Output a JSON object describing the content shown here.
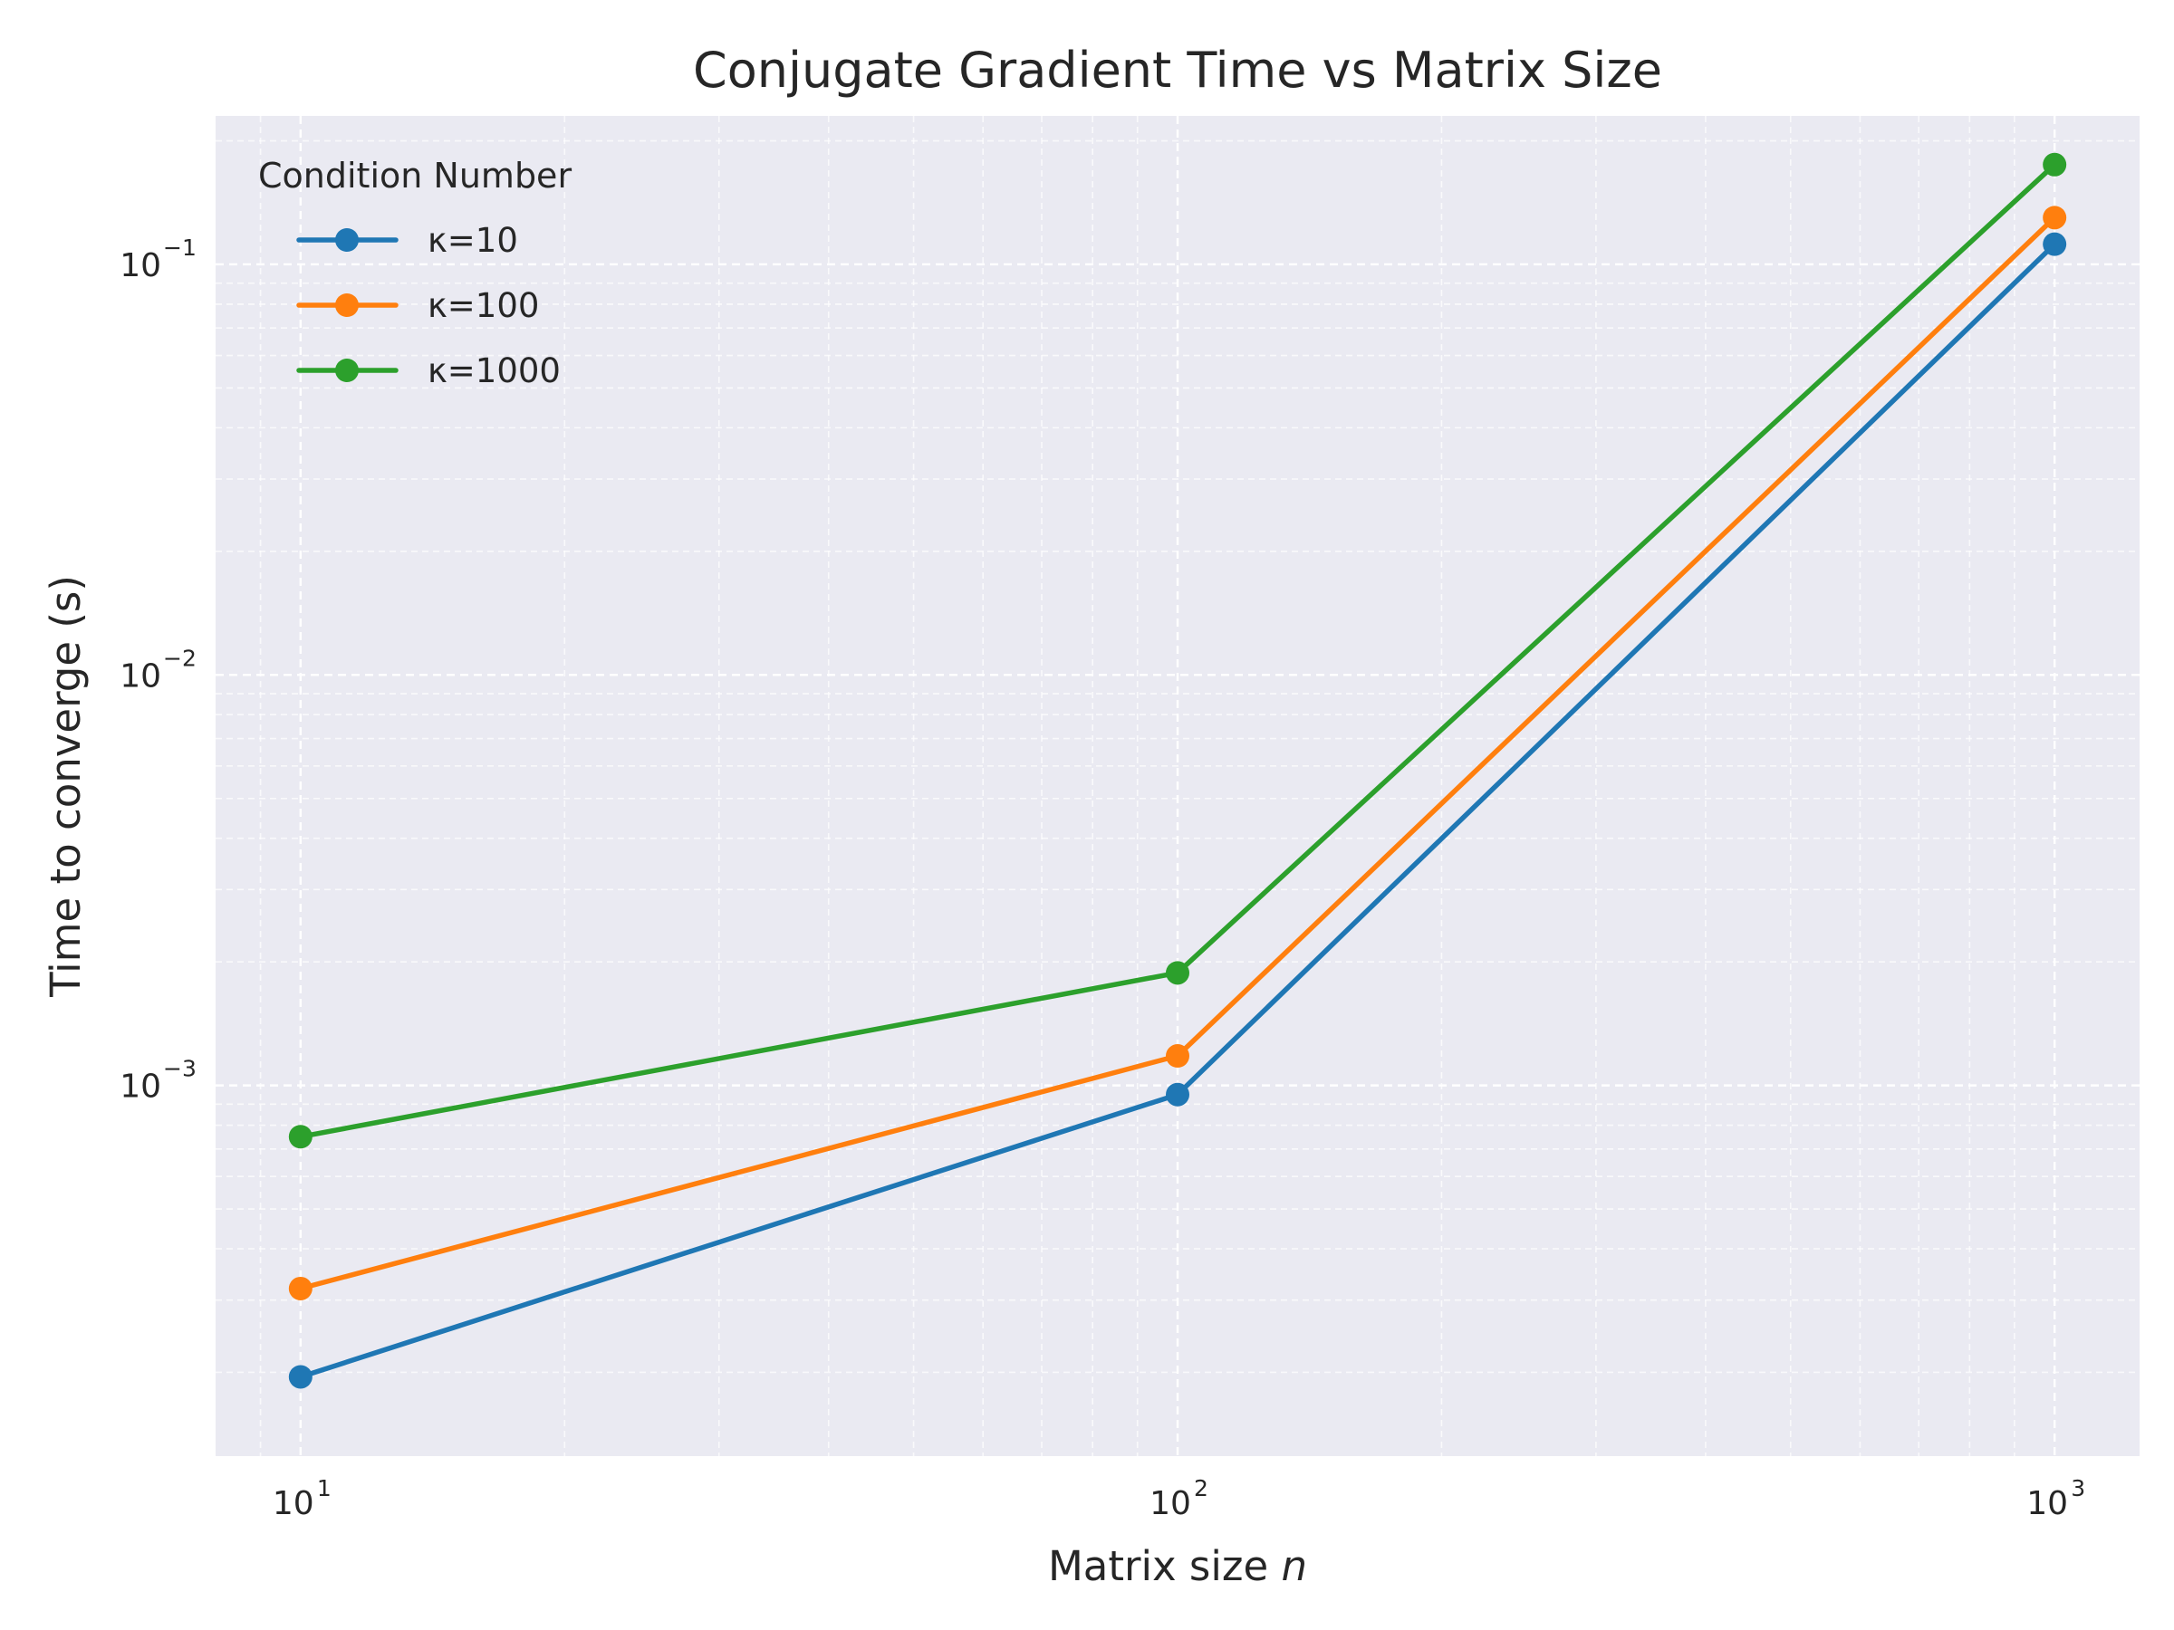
{
  "chart_data": {
    "type": "line",
    "title": "Conjugate Gradient Time vs Matrix Size",
    "xlabel_prefix": "Matrix size ",
    "xlabel_var": "n",
    "ylabel": "Time to converge (s)",
    "xscale": "log",
    "yscale": "log",
    "x": [
      10,
      100,
      1000
    ],
    "xlim": [
      8,
      1250
    ],
    "ylim": [
      0.000125,
      0.23
    ],
    "x_ticks": [
      {
        "base": "10",
        "exp": "1",
        "value": 10
      },
      {
        "base": "10",
        "exp": "2",
        "value": 100
      },
      {
        "base": "10",
        "exp": "3",
        "value": 1000
      }
    ],
    "y_ticks": [
      {
        "base": "10",
        "exp": "−3",
        "value": 0.001
      },
      {
        "base": "10",
        "exp": "−2",
        "value": 0.01
      },
      {
        "base": "10",
        "exp": "−1",
        "value": 0.1
      }
    ],
    "grid": true,
    "legend": {
      "title": "Condition Number",
      "position": "top-left"
    },
    "series": [
      {
        "name": "κ=10",
        "color": "#1f77b4",
        "values": [
          0.000195,
          0.00095,
          0.112
        ]
      },
      {
        "name": "κ=100",
        "color": "#ff7f0e",
        "values": [
          0.00032,
          0.00118,
          0.13
        ]
      },
      {
        "name": "κ=1000",
        "color": "#2ca02c",
        "values": [
          0.00075,
          0.00188,
          0.175
        ]
      }
    ],
    "background_color": "#eaeaf2",
    "grid_color": "#ffffff"
  }
}
